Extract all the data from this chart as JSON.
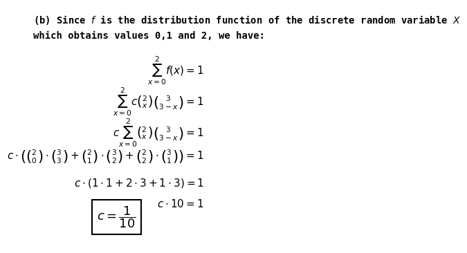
{
  "text_intro": "(b) Since $f$ is the distribution function of the discrete random variable $X$\nwhich obtains values 0,1 and 2, we have:",
  "lines": [
    "\\sum_{x=0}^{2} f(x) = 1",
    "\\sum_{x=0}^{2} c\\binom{2}{x}\\binom{3}{3-x} = 1",
    "c\\sum_{x=0}^{2}\\binom{2}{x}\\binom{3}{3-x} = 1",
    "c\\cdot\\left(\\binom{2}{0}\\cdot\\binom{3}{3}+\\binom{2}{1}\\cdot\\binom{3}{2}+\\binom{2}{2}\\cdot\\binom{3}{1}\\right)=1",
    "c\\cdot(1\\cdot1+2\\cdot3+1\\cdot3)=1",
    "c\\cdot10=1"
  ],
  "answer": "c=\\dfrac{1}{10}",
  "bg_color": "#ffffff",
  "text_color": "#000000",
  "font_size_intro": 10,
  "font_size_math": 11,
  "font_size_answer": 12
}
